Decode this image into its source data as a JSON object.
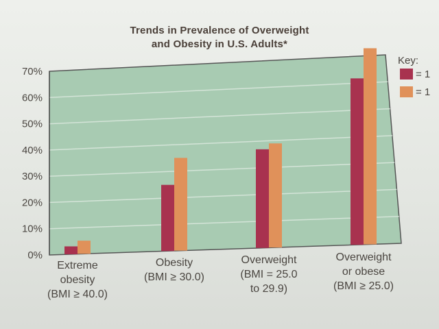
{
  "chart_data": {
    "type": "bar",
    "title": "Trends in Prevalence of Overweight and Obesity in U.S. Adults*",
    "title_lines": [
      "Trends in Prevalence of Overweight",
      "and Obesity in U.S. Adults*"
    ],
    "categories": [
      [
        "Extreme",
        "obesity",
        "(BMI ≥ 40.0)"
      ],
      [
        "Obesity",
        "(BMI ≥ 30.0)"
      ],
      [
        "Overweight",
        "(BMI = 25.0",
        "to 29.9)"
      ],
      [
        "Overweight",
        "or obese",
        "(BMI ≥ 25.0)"
      ]
    ],
    "series": [
      {
        "name": "= 1",
        "color": "#a8324f",
        "values": [
          3,
          25,
          37,
          62
        ]
      },
      {
        "name": "= 1",
        "color": "#e0915a",
        "values": [
          5,
          35,
          39,
          73
        ]
      }
    ],
    "y_ticks": [
      "0%",
      "10%",
      "20%",
      "30%",
      "40%",
      "50%",
      "60%",
      "70%"
    ],
    "ylim": [
      0,
      70
    ],
    "legend_title": "Key:",
    "legend_position": "top-right",
    "grid": true,
    "plot_background": "#a8cbb2",
    "grid_color": "#d4e4d8"
  }
}
